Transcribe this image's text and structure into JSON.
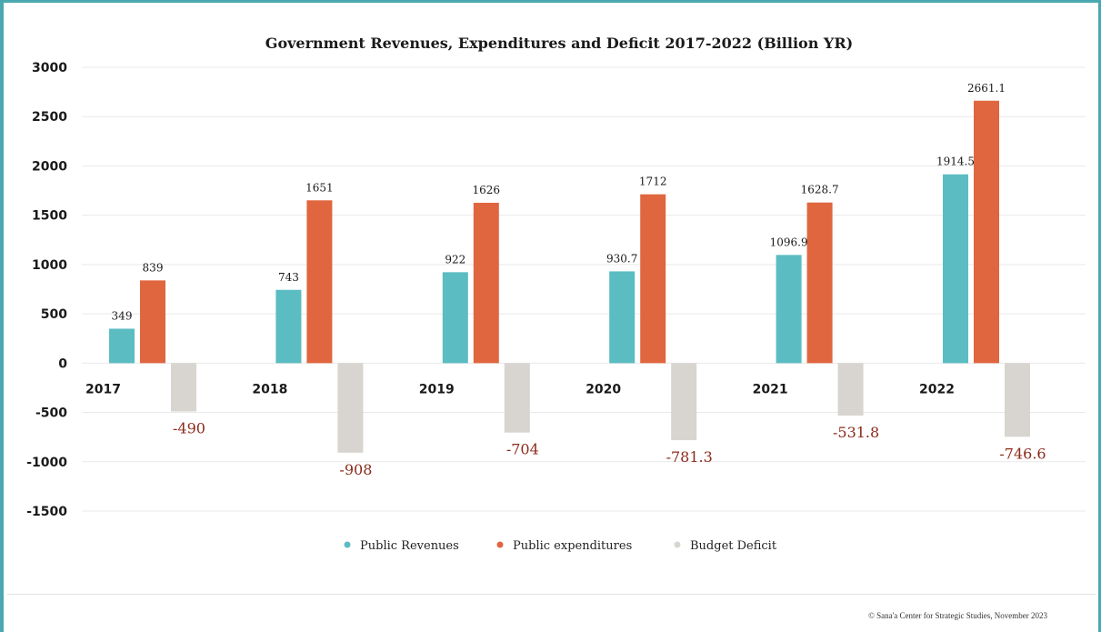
{
  "chart_data": {
    "type": "bar",
    "title": "Government Revenues, Expenditures and Deficit 2017-2022 (Billion YR)",
    "xlabel": "",
    "ylabel": "",
    "categories": [
      "2017",
      "2018",
      "2019",
      "2020",
      "2021",
      "2022"
    ],
    "series": [
      {
        "name": "Public Revenues",
        "color": "#5bbcc2",
        "values": [
          349,
          743,
          922,
          930.7,
          1096.9,
          1914.5
        ],
        "labels": [
          "349",
          "743",
          "922",
          "930.7",
          "1096.9",
          "1914.5"
        ]
      },
      {
        "name": "Public expenditures",
        "color": "#e0663f",
        "values": [
          839,
          1651,
          1626,
          1712,
          1628.7,
          2661.1
        ],
        "labels": [
          "839",
          "1651",
          "1626",
          "1712",
          "1628.7",
          "2661.1"
        ]
      },
      {
        "name": "Budget Deficit",
        "color": "#d8d5d0",
        "values": [
          -490,
          -908,
          -704,
          -781.3,
          -531.8,
          -746.6
        ],
        "labels": [
          "-490",
          "-908",
          "-704",
          "-781.3",
          "-531.8",
          "-746.6"
        ]
      }
    ],
    "yticks": [
      3000,
      2500,
      2000,
      1500,
      1000,
      500,
      0,
      -500,
      -1000,
      -1500
    ],
    "ylim": [
      -1500,
      3000
    ],
    "grid": true,
    "legend_position": "bottom"
  },
  "footer": {
    "credit": "© Sana'a Center for Strategic Studies, November 2023"
  }
}
